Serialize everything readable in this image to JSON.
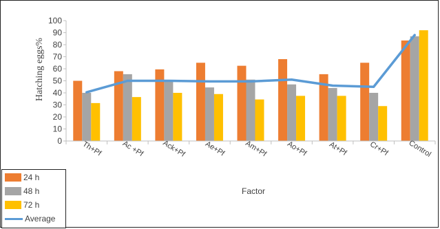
{
  "chart_data": {
    "type": "bar",
    "xlabel": "Factor",
    "ylabel": "Hatching eggs%",
    "ylim": [
      0,
      100
    ],
    "yticks": [
      0,
      10,
      20,
      30,
      40,
      50,
      60,
      70,
      80,
      90,
      100
    ],
    "categories": [
      "Th+Pf",
      "Ac +Pf",
      "Ack+Pf",
      "Ae+Pf",
      "Am+Pf",
      "Ao+Pf",
      "At+Pf",
      "Cr+Pf",
      "Control"
    ],
    "series": [
      {
        "name": "24 h",
        "type": "bar",
        "color": "#ED7D31",
        "values": [
          50,
          58,
          59.5,
          65,
          62.5,
          68,
          55.5,
          65,
          83.5
        ]
      },
      {
        "name": "48 h",
        "type": "bar",
        "color": "#A5A5A5",
        "values": [
          40,
          55.5,
          49.5,
          44.5,
          51,
          47,
          44,
          40,
          87
        ]
      },
      {
        "name": "72 h",
        "type": "bar",
        "color": "#FFC000",
        "values": [
          31.5,
          36.5,
          40,
          39,
          34.5,
          37.5,
          37.5,
          29,
          92
        ]
      },
      {
        "name": "Average",
        "type": "line",
        "color": "#5B9BD5",
        "values": [
          40.5,
          50,
          50,
          49.5,
          49.5,
          51,
          46,
          45,
          88
        ]
      }
    ],
    "grid": false,
    "legend_position": "bottom-left"
  }
}
